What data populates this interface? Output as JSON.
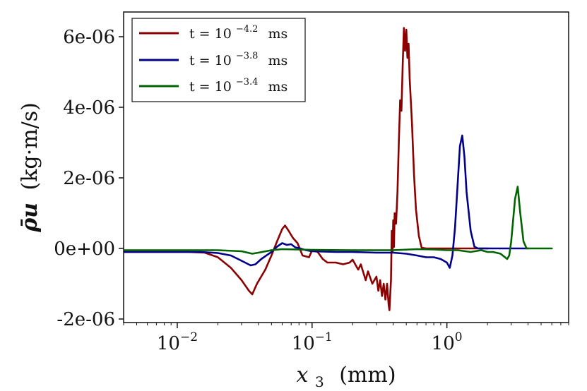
{
  "chart_data": {
    "type": "line",
    "xscale": "log",
    "xlim": [
      0.004,
      8
    ],
    "ylim": [
      -2.1e-06,
      6.7e-06
    ],
    "xlabel": {
      "var": "x",
      "sub": "3",
      "unit": "(mm)"
    },
    "ylabel": {
      "var": "ρ̄u",
      "unit": "(kg·m/s)"
    },
    "x_ticks": [
      {
        "value": 0.01,
        "base": "10",
        "exp": "−2"
      },
      {
        "value": 0.1,
        "base": "10",
        "exp": "−1"
      },
      {
        "value": 1,
        "base": "10",
        "exp": "0"
      }
    ],
    "y_ticks": [
      {
        "value": -2e-06,
        "label": "-2e-06"
      },
      {
        "value": 0,
        "label": "0e+00"
      },
      {
        "value": 2e-06,
        "label": "2e-06"
      },
      {
        "value": 4e-06,
        "label": "4e-06"
      },
      {
        "value": 6e-06,
        "label": "6e-06"
      }
    ],
    "legend_position": "top-left",
    "series": [
      {
        "name": "t = 10^-4.2 ms",
        "legend": {
          "lhs": "t = 10",
          "exp": "−4.2",
          "unit": "ms"
        },
        "color": "#8b0000",
        "points": [
          [
            0.004,
            -1e-07
          ],
          [
            0.012,
            -1e-07
          ],
          [
            0.016,
            -1.2e-07
          ],
          [
            0.02,
            -2.5e-07
          ],
          [
            0.025,
            -5.5e-07
          ],
          [
            0.03,
            -9e-07
          ],
          [
            0.034,
            -1.2e-06
          ],
          [
            0.036,
            -1.3e-06
          ],
          [
            0.039,
            -1e-06
          ],
          [
            0.045,
            -6e-07
          ],
          [
            0.05,
            -2e-07
          ],
          [
            0.055,
            2e-07
          ],
          [
            0.06,
            5.5e-07
          ],
          [
            0.063,
            6.5e-07
          ],
          [
            0.067,
            5e-07
          ],
          [
            0.072,
            3e-07
          ],
          [
            0.078,
            1.5e-07
          ],
          [
            0.085,
            -2e-07
          ],
          [
            0.095,
            -2.5e-07
          ],
          [
            0.1,
            -5e-08
          ],
          [
            0.11,
            -1e-07
          ],
          [
            0.12,
            -3e-07
          ],
          [
            0.13,
            -4e-07
          ],
          [
            0.15,
            -4e-07
          ],
          [
            0.17,
            -4.5e-07
          ],
          [
            0.19,
            -4e-07
          ],
          [
            0.2,
            -3.2e-07
          ],
          [
            0.22,
            -6e-07
          ],
          [
            0.23,
            -4.5e-07
          ],
          [
            0.25,
            -9e-07
          ],
          [
            0.26,
            -6.5e-07
          ],
          [
            0.28,
            -1e-06
          ],
          [
            0.3,
            -8e-07
          ],
          [
            0.31,
            -1.2e-06
          ],
          [
            0.32,
            -9e-07
          ],
          [
            0.33,
            -1.35e-06
          ],
          [
            0.34,
            -1e-06
          ],
          [
            0.35,
            -1.45e-06
          ],
          [
            0.36,
            -1e-06
          ],
          [
            0.37,
            -1.6e-06
          ],
          [
            0.375,
            -1.75e-06
          ],
          [
            0.385,
            -9e-07
          ],
          [
            0.39,
            5e-07
          ],
          [
            0.395,
            -1e-07
          ],
          [
            0.4,
            8e-07
          ],
          [
            0.405,
            4e-08
          ],
          [
            0.41,
            1e-06
          ],
          [
            0.42,
            7e-07
          ],
          [
            0.43,
            1.6e-06
          ],
          [
            0.44,
            3e-06
          ],
          [
            0.45,
            4.2e-06
          ],
          [
            0.46,
            3.9e-06
          ],
          [
            0.47,
            5.2e-06
          ],
          [
            0.48,
            6.25e-06
          ],
          [
            0.49,
            5.6e-06
          ],
          [
            0.5,
            6.2e-06
          ],
          [
            0.51,
            5.4e-06
          ],
          [
            0.52,
            5.8e-06
          ],
          [
            0.53,
            4.8e-06
          ],
          [
            0.55,
            3.6e-06
          ],
          [
            0.57,
            2.1e-06
          ],
          [
            0.59,
            1.1e-06
          ],
          [
            0.62,
            3.5e-07
          ],
          [
            0.65,
            2e-08
          ],
          [
            0.7,
            0.0
          ],
          [
            1.0,
            0.0
          ],
          [
            1.5,
            0.0
          ],
          [
            2.0,
            0.0
          ]
        ]
      },
      {
        "name": "t = 10^-3.8 ms",
        "legend": {
          "lhs": "t = 10",
          "exp": "−3.8",
          "unit": "ms"
        },
        "color": "#00008b",
        "points": [
          [
            0.004,
            -1e-07
          ],
          [
            0.015,
            -1e-07
          ],
          [
            0.02,
            -1.3e-07
          ],
          [
            0.025,
            -2e-07
          ],
          [
            0.03,
            -3.5e-07
          ],
          [
            0.035,
            -4.8e-07
          ],
          [
            0.038,
            -4.5e-07
          ],
          [
            0.042,
            -3e-07
          ],
          [
            0.05,
            -1e-07
          ],
          [
            0.055,
            5e-08
          ],
          [
            0.06,
            1.5e-07
          ],
          [
            0.065,
            1e-07
          ],
          [
            0.07,
            1.2e-07
          ],
          [
            0.075,
            3e-08
          ],
          [
            0.08,
            1e-08
          ],
          [
            0.09,
            -5e-08
          ],
          [
            0.1,
            -8e-08
          ],
          [
            0.15,
            -1e-07
          ],
          [
            0.2,
            -1e-07
          ],
          [
            0.3,
            -1.2e-07
          ],
          [
            0.4,
            -1.2e-07
          ],
          [
            0.5,
            -1.5e-07
          ],
          [
            0.6,
            -2e-07
          ],
          [
            0.7,
            -2.5e-07
          ],
          [
            0.8,
            -2.5e-07
          ],
          [
            0.9,
            -3e-07
          ],
          [
            1.0,
            -4e-07
          ],
          [
            1.05,
            -5.5e-07
          ],
          [
            1.1,
            -2e-07
          ],
          [
            1.15,
            6e-07
          ],
          [
            1.2,
            1.8e-06
          ],
          [
            1.25,
            2.9e-06
          ],
          [
            1.3,
            3.2e-06
          ],
          [
            1.35,
            2.6e-06
          ],
          [
            1.4,
            1.6e-06
          ],
          [
            1.5,
            5e-07
          ],
          [
            1.6,
            5e-08
          ],
          [
            1.7,
            0.0
          ],
          [
            2.0,
            0.0
          ],
          [
            3.0,
            0.0
          ],
          [
            4.0,
            0.0
          ]
        ]
      },
      {
        "name": "t = 10^-3.4 ms",
        "legend": {
          "lhs": "t = 10",
          "exp": "−3.4",
          "unit": "ms"
        },
        "color": "#006400",
        "points": [
          [
            0.004,
            -5e-08
          ],
          [
            0.02,
            -5e-08
          ],
          [
            0.03,
            -8e-08
          ],
          [
            0.036,
            -1.5e-07
          ],
          [
            0.04,
            -1.2e-07
          ],
          [
            0.05,
            -5e-08
          ],
          [
            0.06,
            -2e-08
          ],
          [
            0.1,
            -4e-08
          ],
          [
            0.2,
            -5e-08
          ],
          [
            0.4,
            -5e-08
          ],
          [
            0.6,
            -2e-08
          ],
          [
            0.8,
            -3e-08
          ],
          [
            1.0,
            -5e-08
          ],
          [
            1.2,
            -5e-08
          ],
          [
            1.5,
            -1e-07
          ],
          [
            1.8,
            -5e-08
          ],
          [
            2.0,
            -1e-07
          ],
          [
            2.2,
            -1e-07
          ],
          [
            2.5,
            -1.5e-07
          ],
          [
            2.8,
            -3e-07
          ],
          [
            2.9,
            -2e-07
          ],
          [
            3.0,
            2e-07
          ],
          [
            3.2,
            1.4e-06
          ],
          [
            3.35,
            1.75e-06
          ],
          [
            3.5,
            1e-06
          ],
          [
            3.7,
            2e-07
          ],
          [
            3.9,
            0.0
          ],
          [
            5.0,
            0.0
          ],
          [
            6.0,
            0.0
          ]
        ]
      }
    ]
  }
}
